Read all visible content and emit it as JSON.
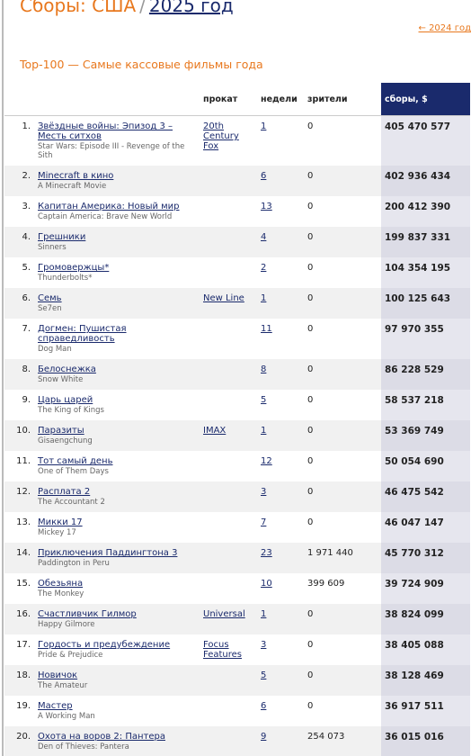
{
  "header": {
    "section": "Сборы: США",
    "separator": "/",
    "year": "2025 год",
    "prev_link": "← 2024 год",
    "subtitle": "Top-100 — Самые кассовые фильмы года"
  },
  "table": {
    "columns": [
      "прокат",
      "недели",
      "зрители",
      "сборы, $"
    ],
    "rows": [
      [
        "1.",
        "Звёздные войны: Эпизод 3 – Месть ситхов",
        "Star Wars: Episode III - Revenge of the Sith",
        "20th Century Fox",
        "1",
        "0",
        "405 470 577"
      ],
      [
        "2.",
        "Minecraft в кино",
        "A Minecraft Movie",
        "",
        "6",
        "0",
        "402 936 434"
      ],
      [
        "3.",
        "Капитан Америка: Новый мир",
        "Captain America: Brave New World",
        "",
        "13",
        "0",
        "200 412 390"
      ],
      [
        "4.",
        "Грешники",
        "Sinners",
        "",
        "4",
        "0",
        "199 837 331"
      ],
      [
        "5.",
        "Громовержцы*",
        "Thunderbolts*",
        "",
        "2",
        "0",
        "104 354 195"
      ],
      [
        "6.",
        "Семь",
        "Se7en",
        "New Line",
        "1",
        "0",
        "100 125 643"
      ],
      [
        "7.",
        "Догмен: Пушистая справедливость",
        "Dog Man",
        "",
        "11",
        "0",
        "97 970 355"
      ],
      [
        "8.",
        "Белоснежка",
        "Snow White",
        "",
        "8",
        "0",
        "86 228 529"
      ],
      [
        "9.",
        "Царь царей",
        "The King of Kings",
        "",
        "5",
        "0",
        "58 537 218"
      ],
      [
        "10.",
        "Паразиты",
        "Gisaengchung",
        "IMAX",
        "1",
        "0",
        "53 369 749"
      ],
      [
        "11.",
        "Тот самый день",
        "One of Them Days",
        "",
        "12",
        "0",
        "50 054 690"
      ],
      [
        "12.",
        "Расплата 2",
        "The Accountant 2",
        "",
        "3",
        "0",
        "46 475 542"
      ],
      [
        "13.",
        "Микки 17",
        "Mickey 17",
        "",
        "7",
        "0",
        "46 047 147"
      ],
      [
        "14.",
        "Приключения Паддингтона 3",
        "Paddington in Peru",
        "",
        "23",
        "1 971 440",
        "45 770 312"
      ],
      [
        "15.",
        "Обезьяна",
        "The Monkey",
        "",
        "10",
        "399 609",
        "39 724 909"
      ],
      [
        "16.",
        "Счастливчик Гилмор",
        "Happy Gilmore",
        "Universal",
        "1",
        "0",
        "38 824 099"
      ],
      [
        "17.",
        "Гордость и предубеждение",
        "Pride & Prejudice",
        "Focus Features",
        "3",
        "0",
        "38 405 088"
      ],
      [
        "18.",
        "Новичок",
        "The Amateur",
        "",
        "5",
        "0",
        "38 128 469"
      ],
      [
        "19.",
        "Мастер",
        "A Working Man",
        "",
        "6",
        "0",
        "36 917 511"
      ],
      [
        "20.",
        "Охота на воров 2: Пантера",
        "Den of Thieves: Pantera",
        "",
        "9",
        "254 073",
        "36 015 016"
      ]
    ]
  }
}
